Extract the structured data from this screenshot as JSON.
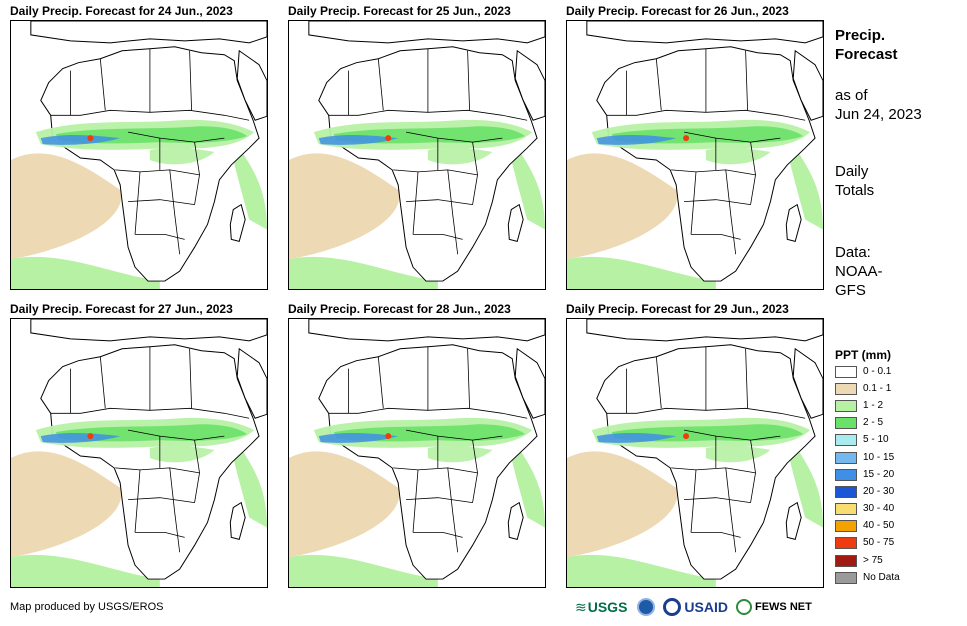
{
  "panels": [
    {
      "title": "Daily Precip. Forecast for 24 Jun., 2023"
    },
    {
      "title": "Daily Precip. Forecast for 25 Jun., 2023"
    },
    {
      "title": "Daily Precip. Forecast for 26 Jun., 2023"
    },
    {
      "title": "Daily Precip. Forecast for 27 Jun., 2023"
    },
    {
      "title": "Daily Precip. Forecast for 28 Jun., 2023"
    },
    {
      "title": "Daily Precip. Forecast for 29 Jun., 2023"
    }
  ],
  "sidebar": {
    "title_line1": "Precip.",
    "title_line2": "Forecast",
    "asof_line1": "as of",
    "asof_line2": "Jun 24, 2023",
    "totals_line1": "Daily",
    "totals_line2": "Totals",
    "data_line1": "Data:",
    "data_line2": "NOAA-",
    "data_line3": "GFS"
  },
  "legend": {
    "title": "PPT (mm)",
    "items": [
      {
        "label": "0 - 0.1",
        "color": "#ffffff"
      },
      {
        "label": "0.1 - 1",
        "color": "#edd9b4"
      },
      {
        "label": "1 - 2",
        "color": "#b6f1a4"
      },
      {
        "label": "2 - 5",
        "color": "#6ae168"
      },
      {
        "label": "5 - 10",
        "color": "#a8ecf0"
      },
      {
        "label": "10 - 15",
        "color": "#74b8ef"
      },
      {
        "label": "15 - 20",
        "color": "#3f8fe6"
      },
      {
        "label": "20 - 30",
        "color": "#1a56d6"
      },
      {
        "label": "30 - 40",
        "color": "#f8de70"
      },
      {
        "label": "40 - 50",
        "color": "#f3a200"
      },
      {
        "label": "50 - 75",
        "color": "#ef3b10"
      },
      {
        "label": "> 75",
        "color": "#a11a14"
      },
      {
        "label": "No Data",
        "color": "#9a9a9a"
      }
    ]
  },
  "credit": "Map produced by USGS/EROS",
  "logos": {
    "usgs": "USGS",
    "usaid": "USAID",
    "fewsnet": "FEWS NET"
  }
}
